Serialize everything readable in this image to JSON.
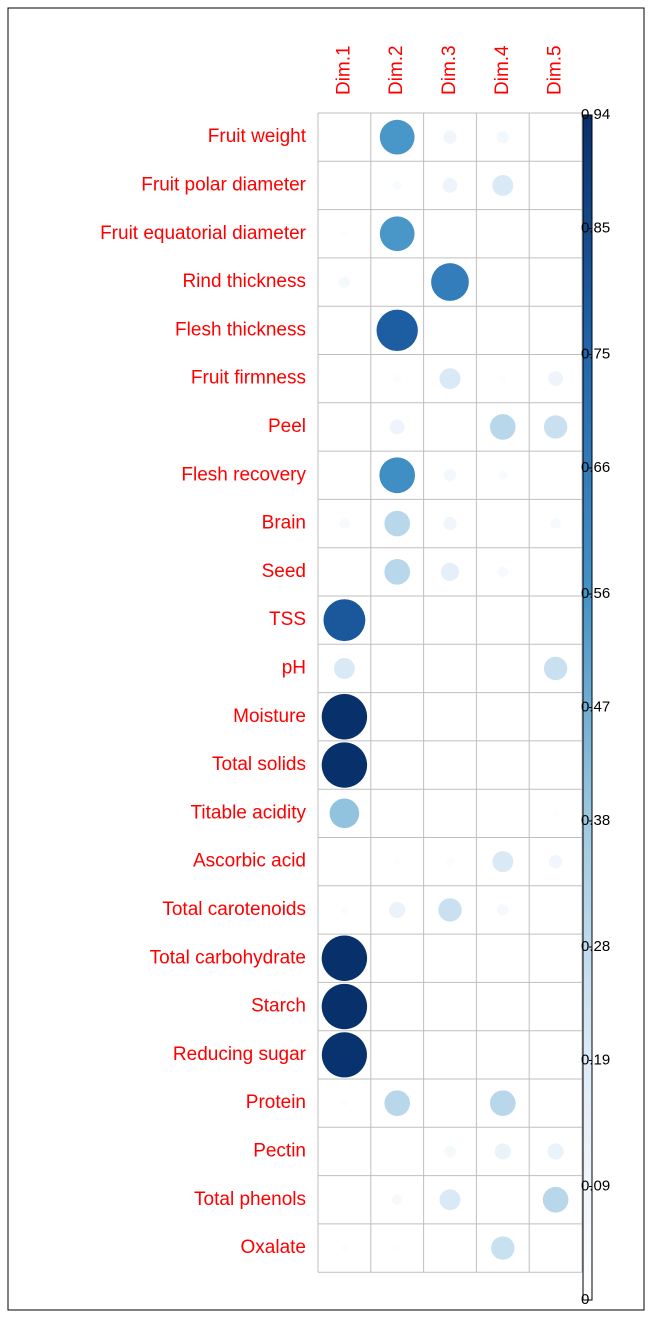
{
  "chart_data": {
    "type": "corrplot",
    "rows": [
      "Fruit weight",
      "Fruit polar diameter",
      "Fruit equatorial diameter",
      "Rind thickness",
      "Flesh thickness",
      "Fruit firmness",
      "Peel",
      "Flesh recovery",
      "Brain",
      "Seed",
      "TSS",
      "pH",
      "Moisture",
      "Total solids",
      "Titable acidity",
      "Ascorbic acid",
      "Total carotenoids",
      "Total carbohydrate",
      "Starch",
      "Reducing sugar",
      "Protein",
      "Pectin",
      "Total phenols",
      "Oxalate"
    ],
    "columns": [
      "Dim.1",
      "Dim.2",
      "Dim.3",
      "Dim.4",
      "Dim.5"
    ],
    "values": [
      [
        0.01,
        0.55,
        0.08,
        0.07,
        0.0
      ],
      [
        0.0,
        0.04,
        0.1,
        0.2,
        0.0
      ],
      [
        0.02,
        0.55,
        0.01,
        0.0,
        0.0
      ],
      [
        0.06,
        0.0,
        0.65,
        0.0,
        0.01
      ],
      [
        0.0,
        0.78,
        0.0,
        0.0,
        0.0
      ],
      [
        0.01,
        0.03,
        0.2,
        0.02,
        0.1
      ],
      [
        0.0,
        0.1,
        0.0,
        0.3,
        0.25
      ],
      [
        0.01,
        0.58,
        0.07,
        0.04,
        0.0
      ],
      [
        0.05,
        0.3,
        0.08,
        0.0,
        0.05
      ],
      [
        0.0,
        0.3,
        0.15,
        0.05,
        0.0
      ],
      [
        0.8,
        0.0,
        0.0,
        0.0,
        0.0
      ],
      [
        0.2,
        0.0,
        0.01,
        0.0,
        0.25
      ],
      [
        0.94,
        0.0,
        0.0,
        0.0,
        0.0
      ],
      [
        0.94,
        0.0,
        0.0,
        0.0,
        0.0
      ],
      [
        0.4,
        0.0,
        0.0,
        0.0,
        0.02
      ],
      [
        0.0,
        0.02,
        0.03,
        0.2,
        0.08
      ],
      [
        0.03,
        0.12,
        0.25,
        0.06,
        0.0
      ],
      [
        0.94,
        0.0,
        0.0,
        0.0,
        0.0
      ],
      [
        0.94,
        0.0,
        0.0,
        0.0,
        0.0
      ],
      [
        0.93,
        0.0,
        0.0,
        0.0,
        0.0
      ],
      [
        0.02,
        0.3,
        0.0,
        0.3,
        0.01
      ],
      [
        0.0,
        0.0,
        0.06,
        0.12,
        0.12
      ],
      [
        0.0,
        0.05,
        0.2,
        0.0,
        0.3
      ],
      [
        0.02,
        0.02,
        0.0,
        0.25,
        0.0
      ]
    ],
    "clim": [
      0,
      0.94
    ],
    "cticks": [
      0,
      0.09,
      0.19,
      0.28,
      0.38,
      0.47,
      0.56,
      0.66,
      0.75,
      0.85,
      0.94
    ],
    "colorscale": [
      "#ffffff",
      "#deebf7",
      "#9ecae1",
      "#4292c6",
      "#2166ac",
      "#08306b"
    ],
    "grid_color": "#bfbfbf"
  }
}
